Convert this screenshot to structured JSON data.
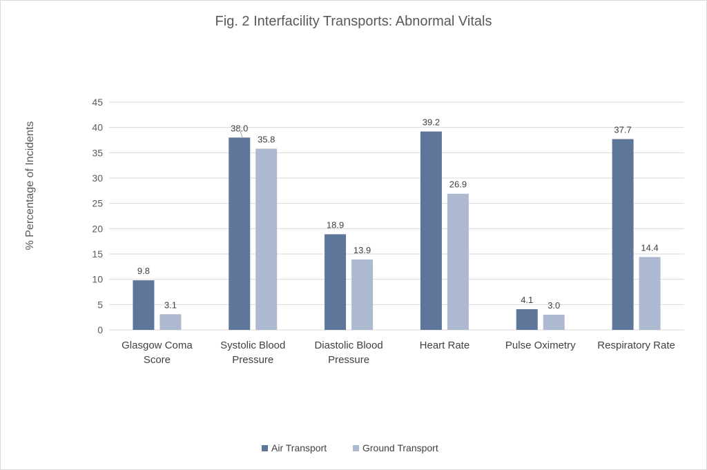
{
  "chart_data": {
    "type": "bar",
    "title": "Fig. 2 Interfacility Transports: Abnormal Vitals",
    "xlabel": "",
    "ylabel": "% Percentage of Incidents",
    "ylim": [
      0,
      45
    ],
    "yticks": [
      0,
      5,
      10,
      15,
      20,
      25,
      30,
      35,
      40,
      45
    ],
    "grid": true,
    "legend_position": "bottom",
    "categories": [
      [
        "Glasgow Coma",
        "Score"
      ],
      [
        "Systolic Blood",
        "Pressure"
      ],
      [
        "Diastolic Blood",
        "Pressure"
      ],
      [
        "Heart Rate"
      ],
      [
        "Pulse Oximetry"
      ],
      [
        "Respiratory Rate"
      ]
    ],
    "series": [
      {
        "name": "Air Transport",
        "color": "#5e7699",
        "values": [
          9.8,
          38.0,
          18.9,
          39.2,
          4.1,
          37.7
        ],
        "labels": [
          "9.8",
          "38.0",
          "18.9",
          "39.2",
          "4.1",
          "37.7"
        ]
      },
      {
        "name": "Ground Transport",
        "color": "#adb9d1",
        "values": [
          3.1,
          35.8,
          13.9,
          26.9,
          3.0,
          14.4
        ],
        "labels": [
          "3.1",
          "35.8",
          "13.9",
          "26.9",
          "3.0",
          "14.4"
        ]
      }
    ]
  }
}
